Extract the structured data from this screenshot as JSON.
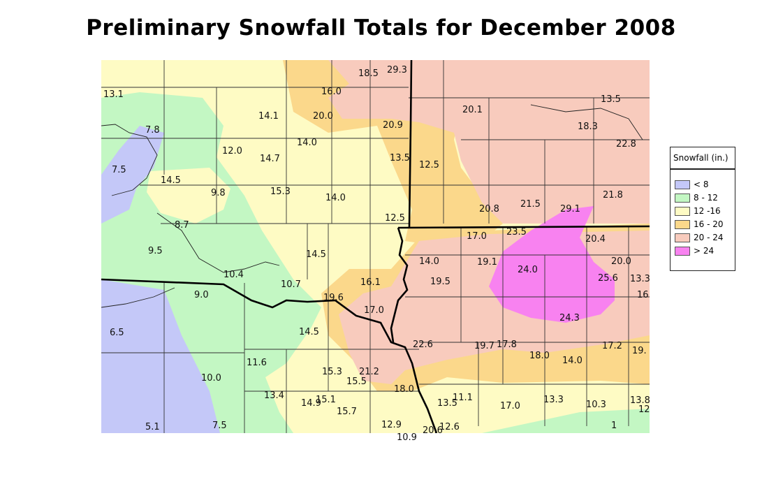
{
  "title": "Preliminary Snowfall Totals for December 2008",
  "legend": {
    "title": "Snowfall (in.)",
    "items": [
      {
        "label": "< 8",
        "color": "#c4c8f8"
      },
      {
        "label": "8 - 12",
        "color": "#c3f7c3"
      },
      {
        "label": "12 -16",
        "color": "#fefbc4"
      },
      {
        "label": "16 - 20",
        "color": "#fbd88b"
      },
      {
        "label": "20 - 24",
        "color": "#f8cbbd"
      },
      {
        "label": "> 24",
        "color": "#f882f0"
      }
    ]
  },
  "stations": [
    "13.1",
    "7.8",
    "7.5",
    "14.5",
    "9.8",
    "8.7",
    "9.5",
    "10.4",
    "9.0",
    "6.5",
    "10.0",
    "5.1",
    "7.5",
    "12.0",
    "14.7",
    "14.1",
    "14.0",
    "15.3",
    "14.0",
    "16.0",
    "20.0",
    "18.5",
    "29.3",
    "20.9",
    "13.5",
    "12.5",
    "12.5",
    "20.1",
    "18.3",
    "13.5",
    "22.8",
    "21.5",
    "20.8",
    "21.8",
    "29.1",
    "23.5",
    "17.0",
    "14.5",
    "10.7",
    "14.0",
    "19.1",
    "24.0",
    "20.4",
    "20.0",
    "19.5",
    "16.1",
    "19.6",
    "17.0",
    "25.6",
    "13.3",
    "16",
    "24.3",
    "14.5",
    "22.6",
    "19.7",
    "17.8",
    "18.0",
    "14.0",
    "17.2",
    "19.",
    "11.6",
    "15.3",
    "15.5",
    "21.2",
    "18.0",
    "13.4",
    "14.9",
    "15.1",
    "15.7",
    "13.5",
    "11.1",
    "17.0",
    "13.3",
    "10.3",
    "13.8",
    "12",
    "12.9",
    "10.9",
    "20.6",
    "12.6",
    "1"
  ]
}
